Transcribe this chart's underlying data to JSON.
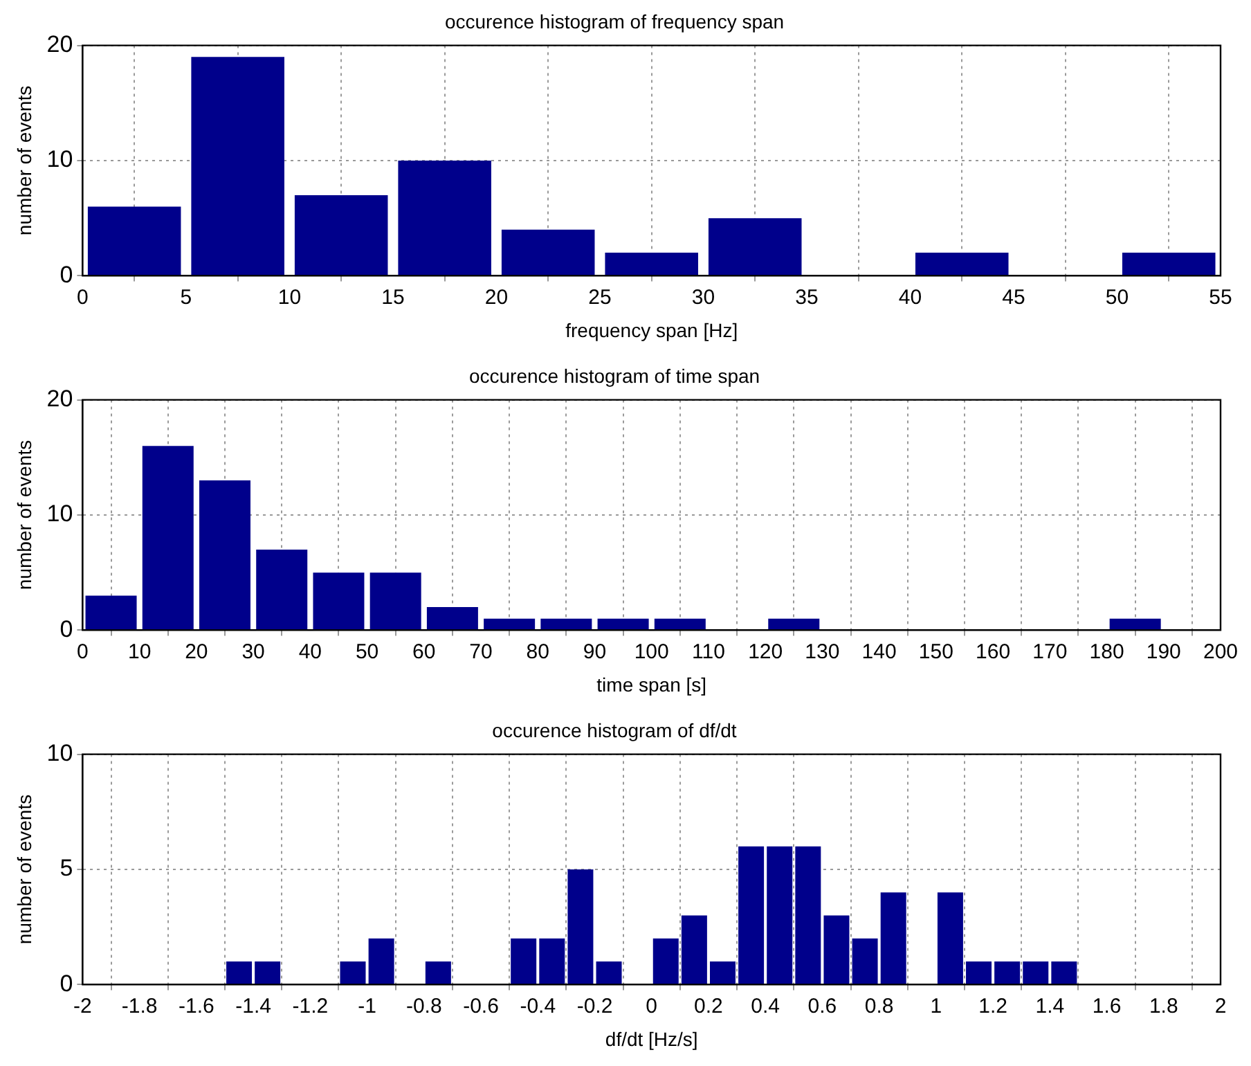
{
  "chart_data": [
    {
      "type": "histogram",
      "title": "occurence histogram of frequency span",
      "xlabel": "frequency span [Hz]",
      "ylabel": "number of events",
      "color": "#00008b",
      "bins": [
        0,
        5,
        10,
        15,
        20,
        25,
        30,
        35,
        40,
        45,
        50,
        55
      ],
      "values": [
        6,
        19,
        7,
        10,
        4,
        2,
        5,
        0,
        2,
        0,
        2
      ],
      "xlim": [
        0,
        55
      ],
      "xticks": [
        0,
        5,
        10,
        15,
        20,
        25,
        30,
        35,
        40,
        45,
        50,
        55
      ],
      "ylim": [
        0,
        20
      ],
      "yticks": [
        0,
        10,
        20
      ],
      "grid": true,
      "legend": false
    },
    {
      "type": "histogram",
      "title": "occurence histogram of time span",
      "xlabel": "time span [s]",
      "ylabel": "number of events",
      "color": "#00008b",
      "bins": [
        0,
        10,
        20,
        30,
        40,
        50,
        60,
        70,
        80,
        90,
        100,
        110,
        120,
        130,
        140,
        150,
        160,
        170,
        180,
        190,
        200
      ],
      "values": [
        3,
        16,
        13,
        7,
        5,
        5,
        2,
        1,
        1,
        1,
        1,
        0,
        1,
        0,
        0,
        0,
        0,
        0,
        1,
        0
      ],
      "xlim": [
        0,
        200
      ],
      "xticks": [
        0,
        10,
        20,
        30,
        40,
        50,
        60,
        70,
        80,
        90,
        100,
        110,
        120,
        130,
        140,
        150,
        160,
        170,
        180,
        190,
        200
      ],
      "ylim": [
        0,
        20
      ],
      "yticks": [
        0,
        10,
        20
      ],
      "grid": true,
      "legend": false
    },
    {
      "type": "histogram",
      "title": "occurence histogram of df/dt",
      "xlabel": "df/dt [Hz/s]",
      "ylabel": "number of events",
      "color": "#00008b",
      "bins": [
        -1.5,
        -1.4,
        -1.3,
        -1.2,
        -1.1,
        -1.0,
        -0.9,
        -0.8,
        -0.7,
        -0.6,
        -0.5,
        -0.4,
        -0.3,
        -0.2,
        -0.1,
        0,
        0.1,
        0.2,
        0.3,
        0.4,
        0.5,
        0.6,
        0.7,
        0.8,
        0.9,
        1.0,
        1.1,
        1.2,
        1.3,
        1.4,
        1.5
      ],
      "values": [
        1,
        1,
        0,
        0,
        1,
        2,
        0,
        1,
        0,
        0,
        2,
        2,
        5,
        1,
        0,
        2,
        3,
        1,
        6,
        6,
        6,
        3,
        2,
        4,
        0,
        4,
        1,
        1,
        1,
        1
      ],
      "xlim": [
        -2,
        2
      ],
      "xticks": [
        -2,
        -1.8,
        -1.6,
        -1.4,
        -1.2,
        -1,
        -0.8,
        -0.6,
        -0.4,
        -0.2,
        0,
        0.2,
        0.4,
        0.6,
        0.8,
        1,
        1.2,
        1.4,
        1.6,
        1.8,
        2
      ],
      "ylim": [
        0,
        10
      ],
      "yticks": [
        0,
        5,
        10
      ],
      "grid": true,
      "legend": false
    }
  ]
}
